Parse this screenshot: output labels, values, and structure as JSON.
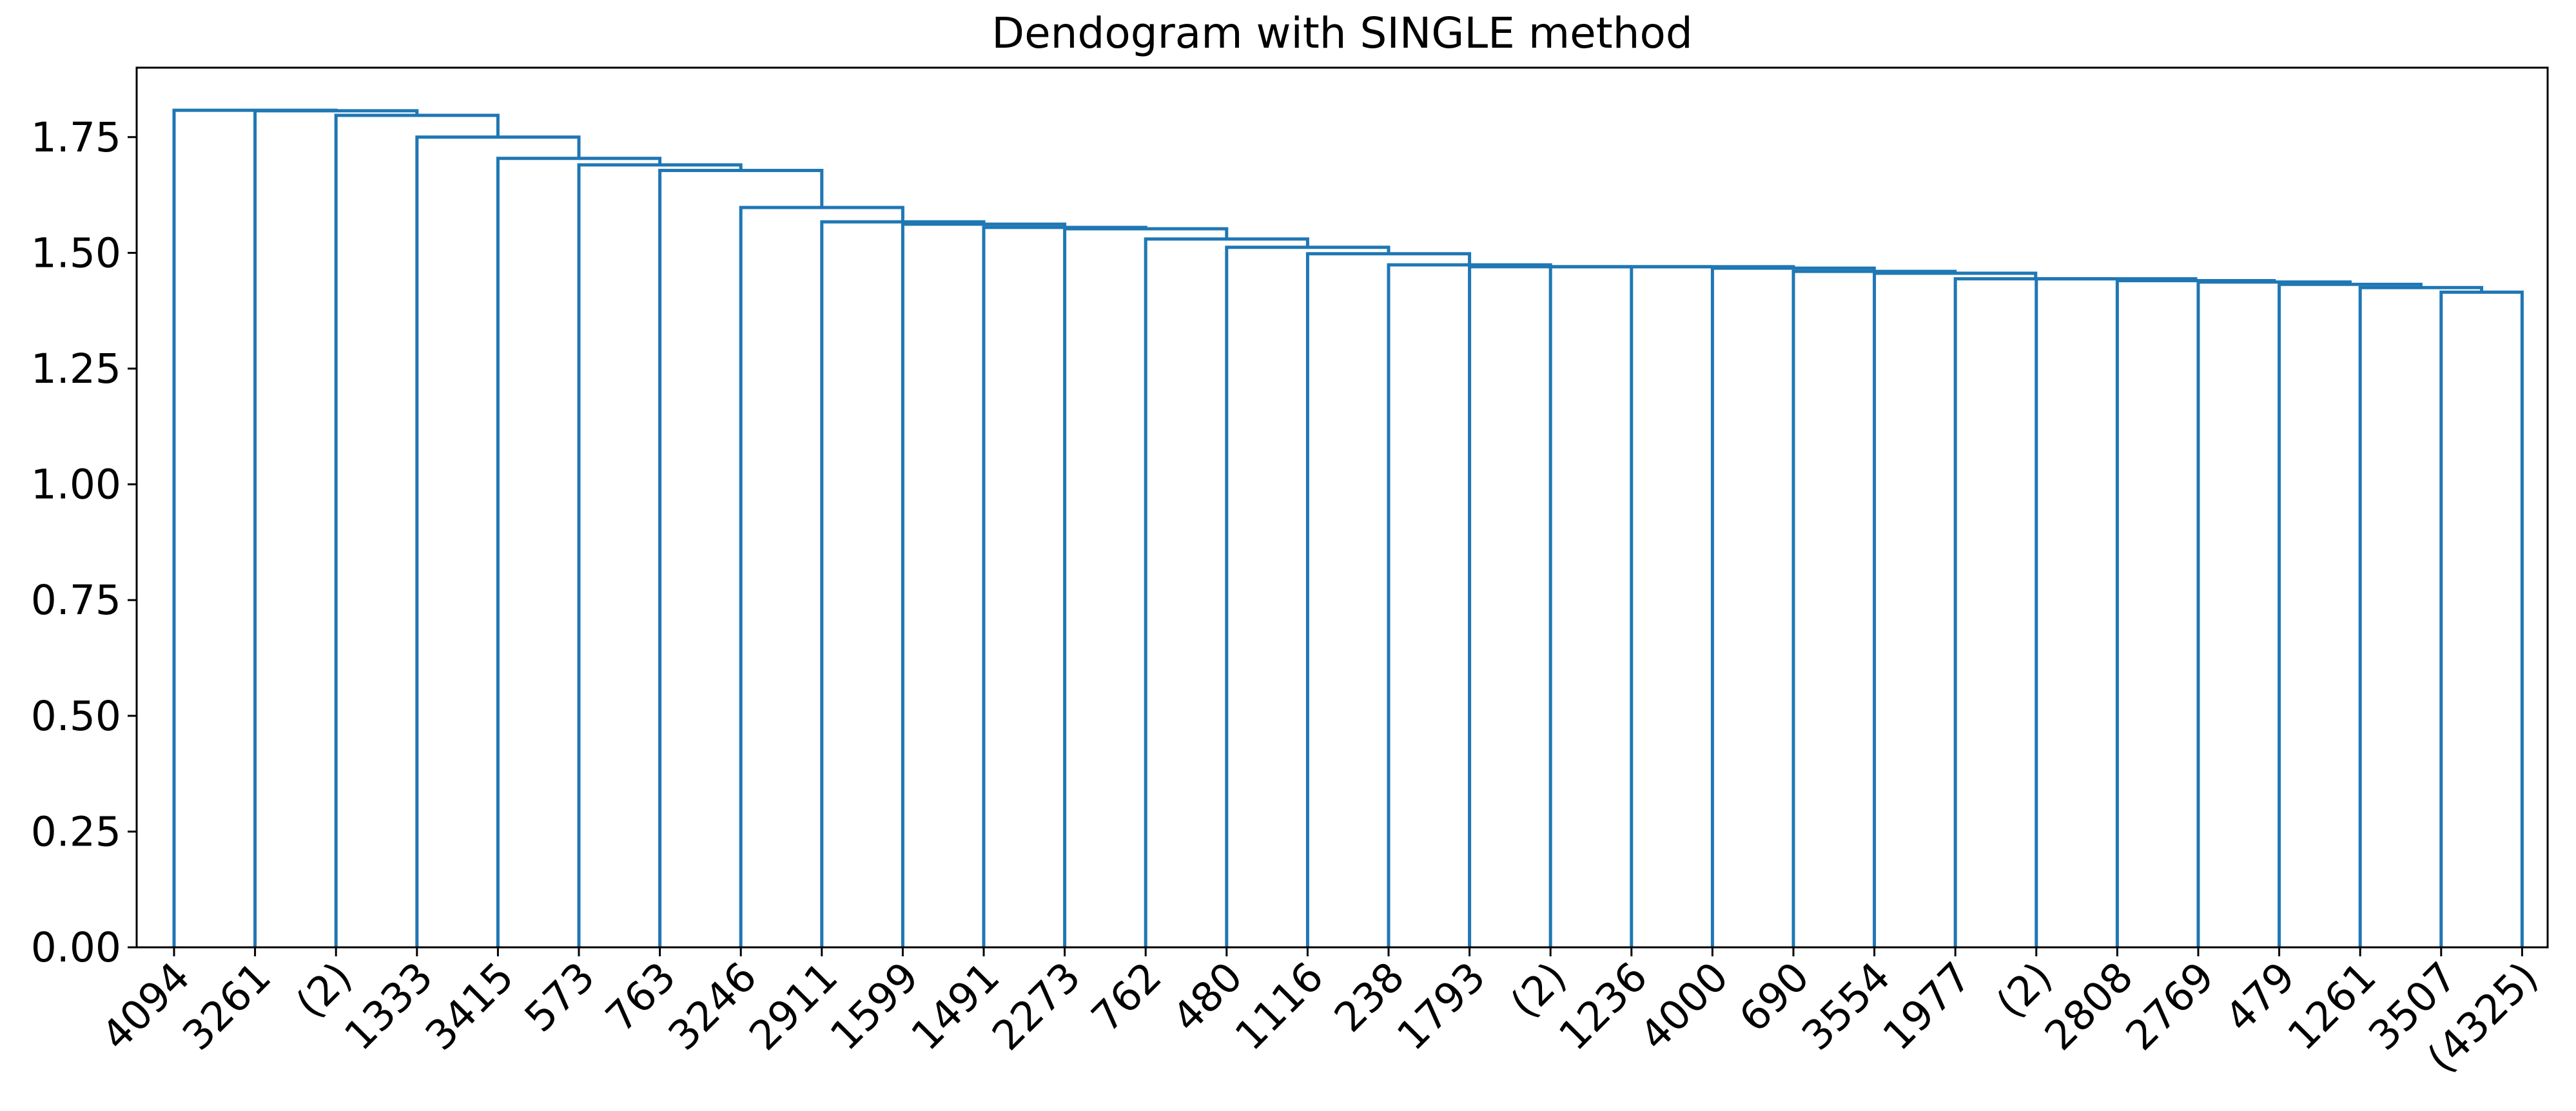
{
  "chart_data": {
    "type": "dendrogram",
    "title": "Dendogram with SINGLE method",
    "xlabel": "",
    "ylabel": "",
    "ylim": [
      0,
      1.9
    ],
    "yticks": [
      "0.00",
      "0.25",
      "0.50",
      "0.75",
      "1.00",
      "1.25",
      "1.50",
      "1.75"
    ],
    "leaves": [
      "4094",
      "3261",
      "(2)",
      "1333",
      "3415",
      "573",
      "763",
      "3246",
      "2911",
      "1599",
      "1491",
      "2273",
      "762",
      "480",
      "1116",
      "238",
      "1793",
      "(2)",
      "1236",
      "4000",
      "690",
      "3554",
      "1977",
      "(2)",
      "2808",
      "2769",
      "479",
      "1261",
      "3507",
      "(4325)"
    ],
    "link_color": "#1f77b4",
    "merges": [
      {
        "left": 28,
        "right": 29,
        "height": 1.415
      },
      {
        "left": 27,
        "right": 30,
        "height": 1.425
      },
      {
        "left": 26,
        "right": 31,
        "height": 1.432
      },
      {
        "left": 25,
        "right": 32,
        "height": 1.437
      },
      {
        "left": 24,
        "right": 33,
        "height": 1.44
      },
      {
        "left": 23,
        "right": 34,
        "height": 1.444
      },
      {
        "left": 22,
        "right": 35,
        "height": 1.444
      },
      {
        "left": 21,
        "right": 36,
        "height": 1.456
      },
      {
        "left": 20,
        "right": 37,
        "height": 1.46
      },
      {
        "left": 19,
        "right": 38,
        "height": 1.467
      },
      {
        "left": 18,
        "right": 39,
        "height": 1.47
      },
      {
        "left": 17,
        "right": 40,
        "height": 1.47
      },
      {
        "left": 16,
        "right": 41,
        "height": 1.47
      },
      {
        "left": 15,
        "right": 42,
        "height": 1.474
      },
      {
        "left": 14,
        "right": 43,
        "height": 1.498
      },
      {
        "left": 13,
        "right": 44,
        "height": 1.512
      },
      {
        "left": 12,
        "right": 45,
        "height": 1.53
      },
      {
        "left": 11,
        "right": 46,
        "height": 1.552
      },
      {
        "left": 10,
        "right": 47,
        "height": 1.555
      },
      {
        "left": 9,
        "right": 48,
        "height": 1.562
      },
      {
        "left": 8,
        "right": 49,
        "height": 1.567
      },
      {
        "left": 7,
        "right": 50,
        "height": 1.598
      },
      {
        "left": 6,
        "right": 51,
        "height": 1.678
      },
      {
        "left": 5,
        "right": 52,
        "height": 1.69
      },
      {
        "left": 4,
        "right": 53,
        "height": 1.704
      },
      {
        "left": 3,
        "right": 54,
        "height": 1.75
      },
      {
        "left": 2,
        "right": 55,
        "height": 1.797
      },
      {
        "left": 1,
        "right": 56,
        "height": 1.807
      },
      {
        "left": 0,
        "right": 57,
        "height": 1.808
      }
    ]
  }
}
